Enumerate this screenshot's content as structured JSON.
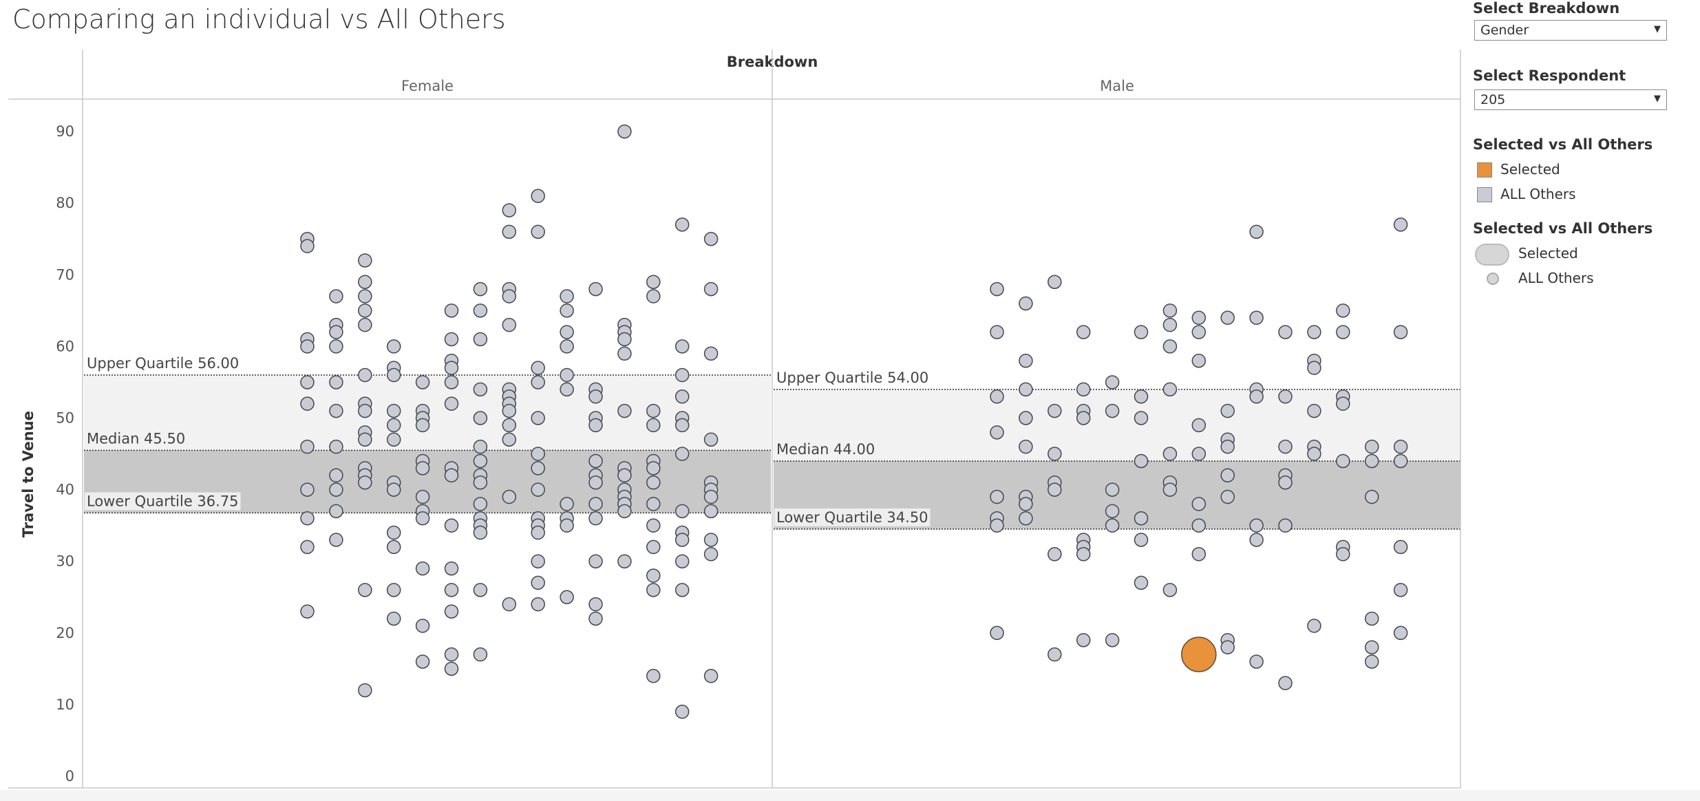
{
  "page": {
    "title": "Comparing an individual vs All Others"
  },
  "controls": {
    "breakdown": {
      "label": "Select Breakdown",
      "value": "Gender"
    },
    "respondent": {
      "label": "Select Respondent",
      "value": "205"
    }
  },
  "legend_color": {
    "title": "Selected vs All Others",
    "items": [
      {
        "label": "Selected",
        "color": "#e8923b"
      },
      {
        "label": "ALL Others",
        "color": "#c9ccd4"
      }
    ]
  },
  "legend_size": {
    "title": "Selected vs All Others",
    "items": [
      {
        "label": "Selected"
      },
      {
        "label": "ALL Others"
      }
    ]
  },
  "chart_data": {
    "type": "scatter",
    "title": "Comparing an individual vs All Others",
    "column_header": "Breakdown",
    "ylabel": "Travel to Venue",
    "ylim": [
      0,
      92
    ],
    "yticks": [
      0,
      10,
      20,
      30,
      40,
      50,
      60,
      70,
      80,
      90
    ],
    "grid": false,
    "colors": {
      "selected": "#e8923b",
      "others": "#c9ccd4",
      "band_upper": "#f2f2f2",
      "band_lower": "#c8c8c8"
    },
    "panels": [
      {
        "name": "Female",
        "x_range": [
          0,
          24
        ],
        "reference_lines": [
          {
            "label": "Upper Quartile 56.00",
            "value": 56.0
          },
          {
            "label": "Median 45.50",
            "value": 45.5
          },
          {
            "label": "Lower Quartile 36.75",
            "value": 36.75
          }
        ],
        "points": [
          [
            5,
            75
          ],
          [
            5,
            74
          ],
          [
            5,
            61
          ],
          [
            5,
            60
          ],
          [
            5,
            55
          ],
          [
            5,
            52
          ],
          [
            5,
            46
          ],
          [
            5,
            40
          ],
          [
            5,
            36
          ],
          [
            5,
            32
          ],
          [
            5,
            23
          ],
          [
            6,
            67
          ],
          [
            6,
            63
          ],
          [
            6,
            62
          ],
          [
            6,
            60
          ],
          [
            6,
            55
          ],
          [
            6,
            51
          ],
          [
            6,
            46
          ],
          [
            6,
            42
          ],
          [
            6,
            40
          ],
          [
            6,
            37
          ],
          [
            6,
            33
          ],
          [
            7,
            72
          ],
          [
            7,
            69
          ],
          [
            7,
            67
          ],
          [
            7,
            65
          ],
          [
            7,
            63
          ],
          [
            7,
            56
          ],
          [
            7,
            52
          ],
          [
            7,
            51
          ],
          [
            7,
            48
          ],
          [
            7,
            47
          ],
          [
            7,
            43
          ],
          [
            7,
            42
          ],
          [
            7,
            41
          ],
          [
            7,
            26
          ],
          [
            7,
            12
          ],
          [
            8,
            60
          ],
          [
            8,
            57
          ],
          [
            8,
            56
          ],
          [
            8,
            51
          ],
          [
            8,
            49
          ],
          [
            8,
            47
          ],
          [
            8,
            41
          ],
          [
            8,
            40
          ],
          [
            8,
            34
          ],
          [
            8,
            32
          ],
          [
            8,
            26
          ],
          [
            8,
            22
          ],
          [
            9,
            55
          ],
          [
            9,
            51
          ],
          [
            9,
            50
          ],
          [
            9,
            49
          ],
          [
            9,
            44
          ],
          [
            9,
            43
          ],
          [
            9,
            39
          ],
          [
            9,
            37
          ],
          [
            9,
            36
          ],
          [
            9,
            29
          ],
          [
            9,
            21
          ],
          [
            9,
            16
          ],
          [
            10,
            65
          ],
          [
            10,
            61
          ],
          [
            10,
            58
          ],
          [
            10,
            57
          ],
          [
            10,
            55
          ],
          [
            10,
            52
          ],
          [
            10,
            43
          ],
          [
            10,
            42
          ],
          [
            10,
            35
          ],
          [
            10,
            29
          ],
          [
            10,
            26
          ],
          [
            10,
            23
          ],
          [
            10,
            17
          ],
          [
            10,
            15
          ],
          [
            11,
            68
          ],
          [
            11,
            65
          ],
          [
            11,
            61
          ],
          [
            11,
            54
          ],
          [
            11,
            50
          ],
          [
            11,
            46
          ],
          [
            11,
            44
          ],
          [
            11,
            42
          ],
          [
            11,
            41
          ],
          [
            11,
            38
          ],
          [
            11,
            36
          ],
          [
            11,
            35
          ],
          [
            11,
            34
          ],
          [
            11,
            26
          ],
          [
            11,
            17
          ],
          [
            12,
            79
          ],
          [
            12,
            76
          ],
          [
            12,
            68
          ],
          [
            12,
            67
          ],
          [
            12,
            63
          ],
          [
            12,
            54
          ],
          [
            12,
            53
          ],
          [
            12,
            52
          ],
          [
            12,
            51
          ],
          [
            12,
            49
          ],
          [
            12,
            47
          ],
          [
            12,
            39
          ],
          [
            12,
            24
          ],
          [
            13,
            81
          ],
          [
            13,
            76
          ],
          [
            13,
            57
          ],
          [
            13,
            55
          ],
          [
            13,
            50
          ],
          [
            13,
            45
          ],
          [
            13,
            43
          ],
          [
            13,
            40
          ],
          [
            13,
            36
          ],
          [
            13,
            35
          ],
          [
            13,
            34
          ],
          [
            13,
            30
          ],
          [
            13,
            27
          ],
          [
            13,
            24
          ],
          [
            14,
            67
          ],
          [
            14,
            65
          ],
          [
            14,
            62
          ],
          [
            14,
            60
          ],
          [
            14,
            56
          ],
          [
            14,
            54
          ],
          [
            14,
            38
          ],
          [
            14,
            36
          ],
          [
            14,
            35
          ],
          [
            14,
            25
          ],
          [
            15,
            68
          ],
          [
            15,
            54
          ],
          [
            15,
            53
          ],
          [
            15,
            50
          ],
          [
            15,
            49
          ],
          [
            15,
            44
          ],
          [
            15,
            42
          ],
          [
            15,
            41
          ],
          [
            15,
            38
          ],
          [
            15,
            36
          ],
          [
            15,
            30
          ],
          [
            15,
            24
          ],
          [
            15,
            22
          ],
          [
            16,
            90
          ],
          [
            16,
            63
          ],
          [
            16,
            62
          ],
          [
            16,
            61
          ],
          [
            16,
            59
          ],
          [
            16,
            51
          ],
          [
            16,
            43
          ],
          [
            16,
            42
          ],
          [
            16,
            40
          ],
          [
            16,
            39
          ],
          [
            16,
            38
          ],
          [
            16,
            37
          ],
          [
            16,
            30
          ],
          [
            17,
            69
          ],
          [
            17,
            67
          ],
          [
            17,
            51
          ],
          [
            17,
            49
          ],
          [
            17,
            44
          ],
          [
            17,
            43
          ],
          [
            17,
            41
          ],
          [
            17,
            38
          ],
          [
            17,
            35
          ],
          [
            17,
            32
          ],
          [
            17,
            28
          ],
          [
            17,
            26
          ],
          [
            17,
            14
          ],
          [
            18,
            77
          ],
          [
            18,
            60
          ],
          [
            18,
            56
          ],
          [
            18,
            53
          ],
          [
            18,
            50
          ],
          [
            18,
            49
          ],
          [
            18,
            45
          ],
          [
            18,
            37
          ],
          [
            18,
            34
          ],
          [
            18,
            33
          ],
          [
            18,
            30
          ],
          [
            18,
            26
          ],
          [
            18,
            9
          ],
          [
            19,
            75
          ],
          [
            19,
            68
          ],
          [
            19,
            59
          ],
          [
            19,
            47
          ],
          [
            19,
            41
          ],
          [
            19,
            40
          ],
          [
            19,
            39
          ],
          [
            19,
            37
          ],
          [
            19,
            33
          ],
          [
            19,
            31
          ],
          [
            19,
            14
          ]
        ],
        "selected": []
      },
      {
        "name": "Male",
        "x_range": [
          0,
          24
        ],
        "reference_lines": [
          {
            "label": "Upper Quartile 54.00",
            "value": 54.0
          },
          {
            "label": "Median 44.00",
            "value": 44.0
          },
          {
            "label": "Lower Quartile 34.50",
            "value": 34.5
          }
        ],
        "points": [
          [
            5,
            68
          ],
          [
            5,
            62
          ],
          [
            5,
            53
          ],
          [
            5,
            48
          ],
          [
            5,
            39
          ],
          [
            5,
            36
          ],
          [
            5,
            35
          ],
          [
            5,
            20
          ],
          [
            6,
            66
          ],
          [
            6,
            58
          ],
          [
            6,
            54
          ],
          [
            6,
            50
          ],
          [
            6,
            46
          ],
          [
            6,
            39
          ],
          [
            6,
            38
          ],
          [
            6,
            36
          ],
          [
            7,
            69
          ],
          [
            7,
            51
          ],
          [
            7,
            45
          ],
          [
            7,
            41
          ],
          [
            7,
            40
          ],
          [
            7,
            31
          ],
          [
            7,
            17
          ],
          [
            8,
            62
          ],
          [
            8,
            54
          ],
          [
            8,
            51
          ],
          [
            8,
            50
          ],
          [
            8,
            33
          ],
          [
            8,
            32
          ],
          [
            8,
            31
          ],
          [
            8,
            19
          ],
          [
            9,
            55
          ],
          [
            9,
            51
          ],
          [
            9,
            40
          ],
          [
            9,
            37
          ],
          [
            9,
            35
          ],
          [
            9,
            19
          ],
          [
            10,
            62
          ],
          [
            10,
            53
          ],
          [
            10,
            50
          ],
          [
            10,
            44
          ],
          [
            10,
            36
          ],
          [
            10,
            33
          ],
          [
            10,
            27
          ],
          [
            11,
            65
          ],
          [
            11,
            63
          ],
          [
            11,
            60
          ],
          [
            11,
            54
          ],
          [
            11,
            45
          ],
          [
            11,
            41
          ],
          [
            11,
            40
          ],
          [
            11,
            26
          ],
          [
            12,
            64
          ],
          [
            12,
            62
          ],
          [
            12,
            58
          ],
          [
            12,
            49
          ],
          [
            12,
            45
          ],
          [
            12,
            38
          ],
          [
            12,
            35
          ],
          [
            12,
            31
          ],
          [
            13,
            64
          ],
          [
            13,
            51
          ],
          [
            13,
            47
          ],
          [
            13,
            46
          ],
          [
            13,
            42
          ],
          [
            13,
            39
          ],
          [
            13,
            19
          ],
          [
            13,
            18
          ],
          [
            14,
            76
          ],
          [
            14,
            64
          ],
          [
            14,
            54
          ],
          [
            14,
            53
          ],
          [
            14,
            35
          ],
          [
            14,
            33
          ],
          [
            14,
            16
          ],
          [
            15,
            62
          ],
          [
            15,
            53
          ],
          [
            15,
            46
          ],
          [
            15,
            42
          ],
          [
            15,
            41
          ],
          [
            15,
            35
          ],
          [
            15,
            13
          ],
          [
            16,
            62
          ],
          [
            16,
            58
          ],
          [
            16,
            57
          ],
          [
            16,
            51
          ],
          [
            16,
            46
          ],
          [
            16,
            45
          ],
          [
            16,
            21
          ],
          [
            17,
            65
          ],
          [
            17,
            62
          ],
          [
            17,
            53
          ],
          [
            17,
            52
          ],
          [
            17,
            44
          ],
          [
            17,
            32
          ],
          [
            17,
            31
          ],
          [
            18,
            46
          ],
          [
            18,
            44
          ],
          [
            18,
            39
          ],
          [
            18,
            22
          ],
          [
            18,
            18
          ],
          [
            18,
            16
          ],
          [
            19,
            77
          ],
          [
            19,
            62
          ],
          [
            19,
            46
          ],
          [
            19,
            44
          ],
          [
            19,
            32
          ],
          [
            19,
            26
          ],
          [
            19,
            20
          ]
        ],
        "selected": [
          [
            12,
            17
          ]
        ]
      }
    ]
  }
}
